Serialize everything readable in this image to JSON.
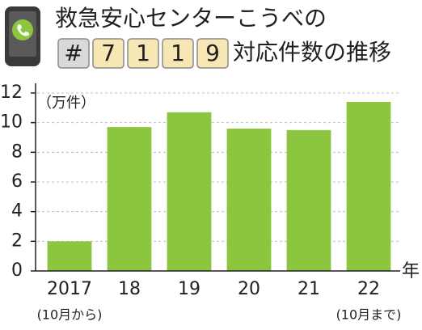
{
  "chart_data": {
    "type": "bar",
    "title": "救急安心センターこうべの",
    "title_keys": [
      "#",
      "7",
      "1",
      "1",
      "9"
    ],
    "title_suffix": "対応件数の推移",
    "y_unit": "（万件）",
    "x_unit": "年",
    "categories": [
      "2017",
      "18",
      "19",
      "20",
      "21",
      "22"
    ],
    "category_notes": [
      "(10月から)",
      null,
      null,
      null,
      null,
      "(10月まで)"
    ],
    "values": [
      2.0,
      9.7,
      10.7,
      9.6,
      9.5,
      11.4
    ],
    "color": "#8cc63e",
    "ylim": [
      0,
      12
    ],
    "yticks": [
      0,
      2,
      4,
      6,
      8,
      10,
      12
    ],
    "grid": true
  }
}
